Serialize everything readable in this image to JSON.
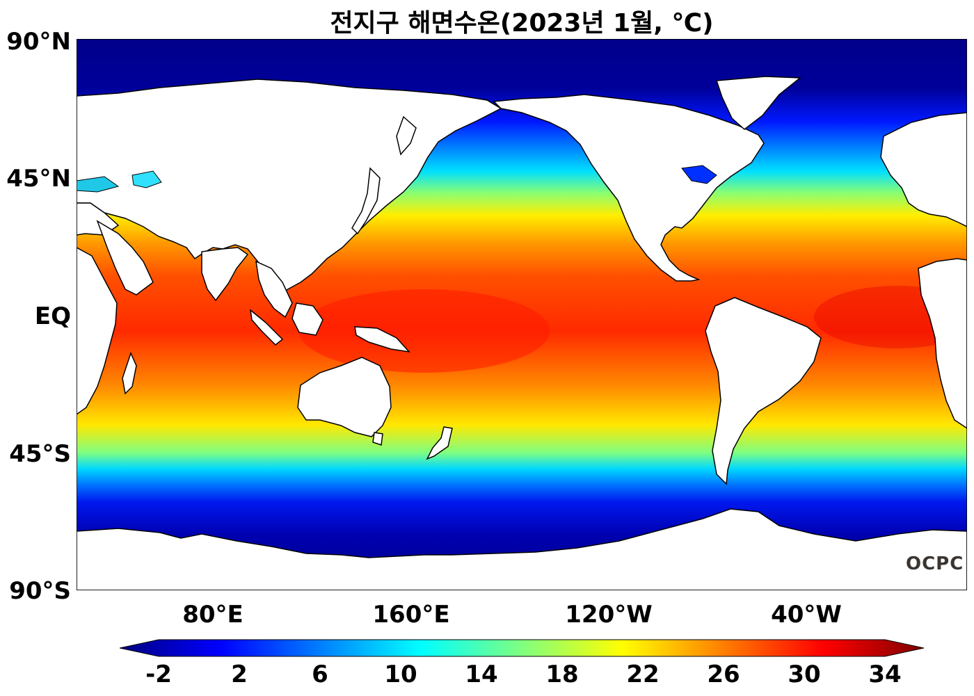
{
  "title": "전지구 해면수온(2023년 1월, ℃)",
  "y_ticks": [
    "90°N",
    "45°N",
    "EQ",
    "45°S",
    "90°S"
  ],
  "x_ticks": [
    "80°E",
    "160°E",
    "120°W",
    "40°W"
  ],
  "colorbar": {
    "ticks": [
      "-2",
      "2",
      "6",
      "10",
      "14",
      "18",
      "22",
      "26",
      "30",
      "34"
    ],
    "range": [
      -2,
      34
    ],
    "colors": [
      "#00007f",
      "#0000ff",
      "#007fff",
      "#00ffff",
      "#7fff7f",
      "#ffff00",
      "#ff7f00",
      "#ff0000",
      "#7f0000"
    ]
  },
  "logo": "OCPC",
  "colors": {
    "land": "#ffffff",
    "coast": "#000000",
    "polar_ocean": "#00008f"
  }
}
